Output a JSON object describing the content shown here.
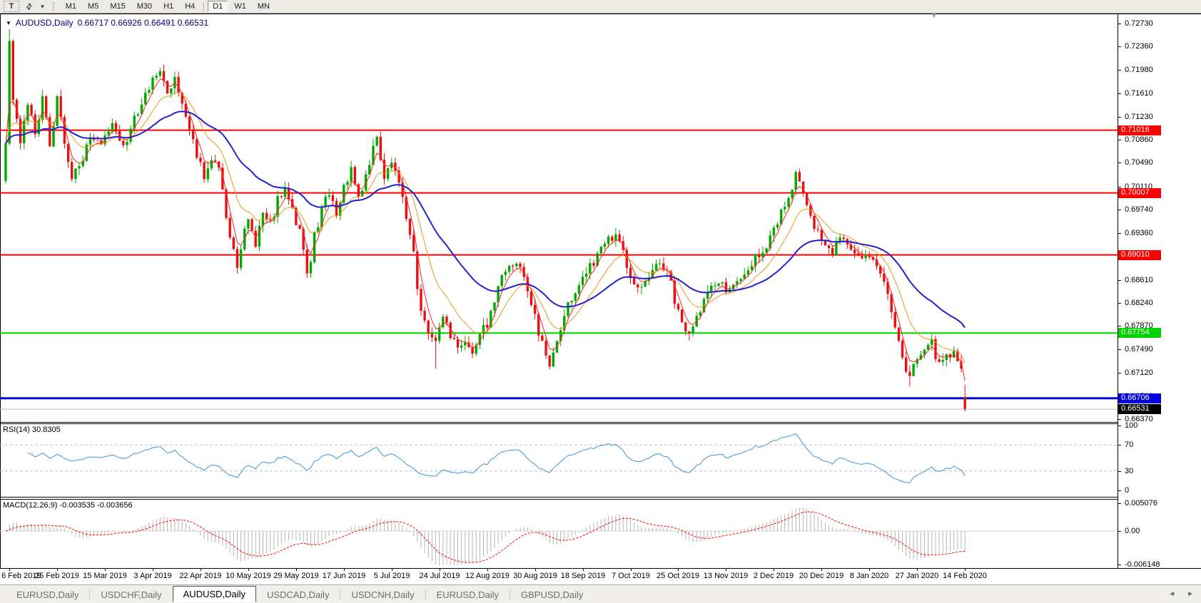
{
  "toolbar": {
    "text_tool_label": "T",
    "cursor_tool_caret": "▾",
    "timeframes": [
      {
        "label": "M1",
        "active": false
      },
      {
        "label": "M5",
        "active": false
      },
      {
        "label": "M15",
        "active": false
      },
      {
        "label": "M30",
        "active": false
      },
      {
        "label": "H1",
        "active": false
      },
      {
        "label": "H4",
        "active": false
      },
      {
        "label": "D1",
        "active": true
      },
      {
        "label": "W1",
        "active": false
      },
      {
        "label": "MN",
        "active": false
      }
    ]
  },
  "chart": {
    "title_symbol": "AUDUSD,Daily",
    "title_ohlc": "0.66717 0.66926 0.66491 0.66531"
  },
  "indicators": {
    "rsi_label": "RSI(14) 30.8305",
    "macd_label": "MACD(12,26,9) -0.003535 -0.003656"
  },
  "chart_data": {
    "type": "candlestick",
    "symbol": "AUDUSD",
    "period": "Daily",
    "title": "AUDUSD,Daily",
    "last_bar": {
      "open": 0.66717,
      "high": 0.66926,
      "low": 0.66491,
      "close": 0.66531
    },
    "up_color": "#00a800",
    "down_color": "#ea1010",
    "price_axis_ticks": [
      "0.72730",
      "0.72360",
      "0.71980",
      "0.71610",
      "0.71230",
      "0.70860",
      "0.70490",
      "0.70110",
      "0.69740",
      "0.69360",
      "0.68990",
      "0.68610",
      "0.68240",
      "0.67870",
      "0.67490",
      "0.67120",
      "0.66740",
      "0.66370"
    ],
    "price_axis_range": [
      0.6637,
      0.7273
    ],
    "horizontal_lines": [
      {
        "price": 0.71016,
        "label": "0.71016",
        "color": "#ff0000",
        "width": 2,
        "badge_bg": "#ff0000",
        "badge_fg": "#ffffff"
      },
      {
        "price": 0.70007,
        "label": "0.70007",
        "color": "#ff0000",
        "width": 2,
        "badge_bg": "#ff0000",
        "badge_fg": "#ffffff"
      },
      {
        "price": 0.6901,
        "label": "0.69010",
        "color": "#ff0000",
        "width": 2,
        "badge_bg": "#ff0000",
        "badge_fg": "#ffffff"
      },
      {
        "price": 0.67754,
        "label": "0.67754",
        "color": "#00d400",
        "width": 2,
        "badge_bg": "#00d400",
        "badge_fg": "#ffffff"
      },
      {
        "price": 0.66706,
        "label": "0.66706",
        "color": "#0000dc",
        "width": 3,
        "badge_bg": "#0000dc",
        "badge_fg": "#ffffff"
      }
    ],
    "current_price": {
      "value": 0.66531,
      "label": "0.66531",
      "line_color": "#bcbcbc",
      "badge_bg": "#000000",
      "badge_fg": "#ffffff"
    },
    "date_axis_ticks": [
      "6 Feb 2019",
      "25 Feb 2019",
      "15 Mar 2019",
      "3 Apr 2019",
      "22 Apr 2019",
      "10 May 2019",
      "29 May 2019",
      "17 Jun 2019",
      "5 Jul 2019",
      "24 Jul 2019",
      "12 Aug 2019",
      "30 Aug 2019",
      "18 Sep 2019",
      "7 Oct 2019",
      "25 Oct 2019",
      "13 Nov 2019",
      "2 Dec 2019",
      "20 Dec 2019",
      "8 Jan 2020",
      "27 Jan 2020",
      "14 Feb 2020"
    ],
    "bars_per_date_tick": 13,
    "first_tick_bar": 1,
    "num_bars": 262,
    "close_path_anchors": [
      [
        0,
        0.708
      ],
      [
        1,
        0.7245
      ],
      [
        2,
        0.715
      ],
      [
        4,
        0.7085
      ],
      [
        6,
        0.715
      ],
      [
        8,
        0.709
      ],
      [
        10,
        0.716
      ],
      [
        12,
        0.708
      ],
      [
        14,
        0.715
      ],
      [
        16,
        0.7085
      ],
      [
        18,
        0.703
      ],
      [
        20,
        0.704
      ],
      [
        23,
        0.7095
      ],
      [
        26,
        0.708
      ],
      [
        29,
        0.712
      ],
      [
        32,
        0.707
      ],
      [
        34,
        0.71
      ],
      [
        36,
        0.7135
      ],
      [
        38,
        0.7165
      ],
      [
        40,
        0.718
      ],
      [
        42,
        0.72
      ],
      [
        44,
        0.716
      ],
      [
        46,
        0.7185
      ],
      [
        48,
        0.714
      ],
      [
        50,
        0.711
      ],
      [
        52,
        0.7065
      ],
      [
        54,
        0.703
      ],
      [
        56,
        0.706
      ],
      [
        58,
        0.704
      ],
      [
        60,
        0.696
      ],
      [
        62,
        0.6905
      ],
      [
        63,
        0.6875
      ],
      [
        65,
        0.694
      ],
      [
        66,
        0.6965
      ],
      [
        68,
        0.692
      ],
      [
        70,
        0.6975
      ],
      [
        72,
        0.695
      ],
      [
        74,
        0.699
      ],
      [
        76,
        0.7005
      ],
      [
        78,
        0.697
      ],
      [
        80,
        0.694
      ],
      [
        82,
        0.6865
      ],
      [
        84,
        0.693
      ],
      [
        86,
        0.6975
      ],
      [
        88,
        0.7
      ],
      [
        90,
        0.696
      ],
      [
        92,
        0.701
      ],
      [
        94,
        0.7035
      ],
      [
        96,
        0.699
      ],
      [
        98,
        0.703
      ],
      [
        100,
        0.707
      ],
      [
        101,
        0.7085
      ],
      [
        103,
        0.703
      ],
      [
        105,
        0.7048
      ],
      [
        107,
        0.702
      ],
      [
        109,
        0.696
      ],
      [
        111,
        0.69
      ],
      [
        113,
        0.6805
      ],
      [
        115,
        0.6775
      ],
      [
        117,
        0.6762
      ],
      [
        119,
        0.68
      ],
      [
        121,
        0.6775
      ],
      [
        123,
        0.6745
      ],
      [
        125,
        0.6762
      ],
      [
        127,
        0.6748
      ],
      [
        129,
        0.6775
      ],
      [
        131,
        0.6792
      ],
      [
        133,
        0.683
      ],
      [
        135,
        0.6862
      ],
      [
        137,
        0.688
      ],
      [
        139,
        0.6895
      ],
      [
        141,
        0.687
      ],
      [
        143,
        0.682
      ],
      [
        144,
        0.68
      ],
      [
        146,
        0.6755
      ],
      [
        148,
        0.6722
      ],
      [
        150,
        0.676
      ],
      [
        152,
        0.6805
      ],
      [
        154,
        0.683
      ],
      [
        156,
        0.6855
      ],
      [
        158,
        0.687
      ],
      [
        160,
        0.689
      ],
      [
        162,
        0.691
      ],
      [
        164,
        0.6932
      ],
      [
        166,
        0.6928
      ],
      [
        168,
        0.6905
      ],
      [
        170,
        0.686
      ],
      [
        172,
        0.6845
      ],
      [
        174,
        0.6855
      ],
      [
        176,
        0.687
      ],
      [
        178,
        0.689
      ],
      [
        180,
        0.6875
      ],
      [
        182,
        0.683
      ],
      [
        184,
        0.679
      ],
      [
        186,
        0.6775
      ],
      [
        188,
        0.68
      ],
      [
        190,
        0.683
      ],
      [
        192,
        0.685
      ],
      [
        194,
        0.6862
      ],
      [
        196,
        0.684
      ],
      [
        198,
        0.6848
      ],
      [
        200,
        0.6862
      ],
      [
        202,
        0.688
      ],
      [
        204,
        0.6895
      ],
      [
        206,
        0.6905
      ],
      [
        208,
        0.6925
      ],
      [
        210,
        0.6955
      ],
      [
        212,
        0.6985
      ],
      [
        214,
        0.701
      ],
      [
        215,
        0.7028
      ],
      [
        217,
        0.7
      ],
      [
        219,
        0.696
      ],
      [
        221,
        0.6935
      ],
      [
        223,
        0.691
      ],
      [
        225,
        0.69
      ],
      [
        227,
        0.693
      ],
      [
        229,
        0.6912
      ],
      [
        231,
        0.6898
      ],
      [
        233,
        0.6895
      ],
      [
        235,
        0.6905
      ],
      [
        237,
        0.688
      ],
      [
        239,
        0.6858
      ],
      [
        241,
        0.681
      ],
      [
        243,
        0.6762
      ],
      [
        245,
        0.672
      ],
      [
        246,
        0.6702
      ],
      [
        248,
        0.674
      ],
      [
        250,
        0.6752
      ],
      [
        252,
        0.6758
      ],
      [
        254,
        0.6722
      ],
      [
        256,
        0.674
      ],
      [
        258,
        0.6745
      ],
      [
        259,
        0.673
      ],
      [
        260,
        0.6718
      ],
      [
        261,
        0.66531
      ]
    ],
    "special_wicks": [
      {
        "bar": 1,
        "high": 0.7264
      },
      {
        "bar": 117,
        "low": 0.6718
      },
      {
        "bar": 246,
        "low": 0.669
      }
    ],
    "moving_averages": [
      {
        "name": "ma-fast",
        "period": 4,
        "color": "#ff2222",
        "width": 1
      },
      {
        "name": "ma-medium",
        "period": 12,
        "color": "#e59b1c",
        "width": 1
      },
      {
        "name": "ma-slow",
        "period": 35,
        "color": "#2222cc",
        "width": 2
      }
    ],
    "rsi": {
      "period": 14,
      "last_value": 30.8305,
      "levels": [
        70,
        30
      ],
      "scale_ticks": [
        "100",
        "70",
        "30",
        "0"
      ],
      "line_color": "#3f94d6"
    },
    "macd": {
      "fast": 12,
      "slow": 26,
      "signal": 9,
      "last_main": -0.003535,
      "last_signal": -0.003656,
      "scale_ticks": [
        "0.005076",
        "0.00",
        "-0.006148"
      ],
      "scale_max": 0.005076,
      "scale_min": -0.006148,
      "histogram_color": "#b4b4b4",
      "signal_color": "#ff0000"
    }
  },
  "tabs": {
    "items": [
      {
        "label": "EURUSD,Daily",
        "active": false
      },
      {
        "label": "USDCHF,Daily",
        "active": false
      },
      {
        "label": "AUDUSD,Daily",
        "active": true
      },
      {
        "label": "USDCAD,Daily",
        "active": false
      },
      {
        "label": "USDCNH,Daily",
        "active": false
      },
      {
        "label": "EURUSD,Daily",
        "active": false
      },
      {
        "label": "GBPUSD,Daily",
        "active": false
      }
    ],
    "scroll_left": "◄",
    "scroll_right": "►"
  }
}
